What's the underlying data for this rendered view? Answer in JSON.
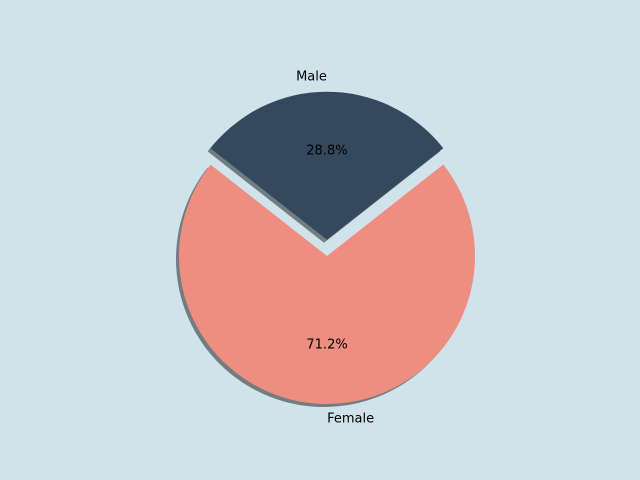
{
  "chart_data": {
    "type": "pie",
    "categories": [
      "Male",
      "Female"
    ],
    "values": [
      28.8,
      71.2
    ],
    "value_labels": [
      "28.8%",
      "71.2%"
    ],
    "colors": [
      "#34495e",
      "#ed8e81"
    ],
    "shadow": true
  }
}
